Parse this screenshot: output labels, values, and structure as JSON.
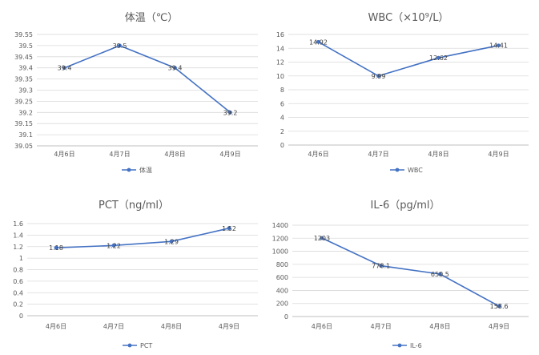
{
  "chart_data": [
    {
      "type": "line",
      "title": "体温（℃）",
      "categories": [
        "4月6日",
        "4月7日",
        "4月8日",
        "4月9日"
      ],
      "series": [
        {
          "name": "体温",
          "values": [
            39.4,
            39.5,
            39.4,
            39.2
          ]
        }
      ],
      "data_labels": [
        "39.4",
        "39.5",
        "39.4",
        "39.2"
      ],
      "ylim": [
        39.05,
        39.55
      ],
      "yticks": [
        "39.55",
        "39.5",
        "39.45",
        "39.4",
        "39.35",
        "39.3",
        "39.25",
        "39.2",
        "39.15",
        "39.1",
        "39.05"
      ],
      "legend": "bottom",
      "grid": true
    },
    {
      "type": "line",
      "title": "WBC（×10⁹/L）",
      "categories": [
        "4月6日",
        "4月7日",
        "4月8日",
        "4月9日"
      ],
      "series": [
        {
          "name": "WBC",
          "values": [
            14.92,
            9.99,
            12.62,
            14.41
          ]
        }
      ],
      "data_labels": [
        "14.92",
        "9.99",
        "12.62",
        "14.41"
      ],
      "ylim": [
        0,
        16
      ],
      "yticks": [
        "16",
        "14",
        "12",
        "10",
        "8",
        "6",
        "4",
        "2",
        "0"
      ],
      "legend": "bottom",
      "grid": true
    },
    {
      "type": "line",
      "title": "PCT（ng/ml）",
      "categories": [
        "4月6日",
        "4月7日",
        "4月8日",
        "4月9日"
      ],
      "series": [
        {
          "name": "PCT",
          "values": [
            1.18,
            1.22,
            1.29,
            1.52
          ]
        }
      ],
      "data_labels": [
        "1.18",
        "1.22",
        "1.29",
        "1.52"
      ],
      "ylim": [
        0,
        1.6
      ],
      "yticks": [
        "1.6",
        "1.4",
        "1.2",
        "1",
        "0.8",
        "0.6",
        "0.4",
        "0.2",
        "0"
      ],
      "legend": "bottom",
      "grid": true
    },
    {
      "type": "line",
      "title": "IL-6（pg/ml）",
      "categories": [
        "4月6日",
        "4月7日",
        "4月8日",
        "4月9日"
      ],
      "series": [
        {
          "name": "IL-6",
          "values": [
            1203,
            778.1,
            650.5,
            158.6
          ]
        }
      ],
      "data_labels": [
        "1203",
        "778.1",
        "650.5",
        "158.6"
      ],
      "ylim": [
        0,
        1400
      ],
      "yticks": [
        "1400",
        "1200",
        "1000",
        "800",
        "600",
        "400",
        "200",
        "0"
      ],
      "legend": "bottom",
      "grid": true
    }
  ],
  "colors": {
    "series": "#4472c4",
    "grid": "#d9d9d9",
    "text": "#595959"
  }
}
